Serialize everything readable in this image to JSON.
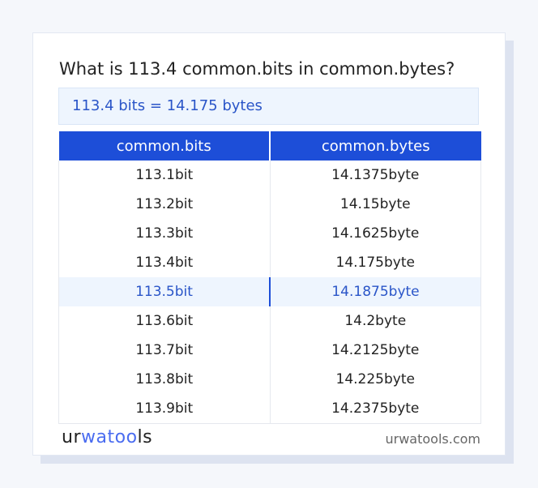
{
  "title": "What is 113.4 common.bits in common.bytes?",
  "result": "113.4 bits = 14.175 bytes",
  "table": {
    "headers": [
      "common.bits",
      "common.bytes"
    ],
    "rows": [
      [
        "113.1bit",
        "14.1375byte"
      ],
      [
        "113.2bit",
        "14.15byte"
      ],
      [
        "113.3bit",
        "14.1625byte"
      ],
      [
        "113.4bit",
        "14.175byte"
      ],
      [
        "113.5bit",
        "14.1875byte"
      ],
      [
        "113.6bit",
        "14.2byte"
      ],
      [
        "113.7bit",
        "14.2125byte"
      ],
      [
        "113.8bit",
        "14.225byte"
      ],
      [
        "113.9bit",
        "14.2375byte"
      ]
    ],
    "highlighted_row": 4
  },
  "logo": {
    "p1": "ur",
    "p2": "wat",
    "p3": "oo",
    "p4": "ls"
  },
  "site": "urwatools.com",
  "colors": {
    "accent": "#1d4ed8",
    "highlight_bg": "#eef5fe"
  }
}
